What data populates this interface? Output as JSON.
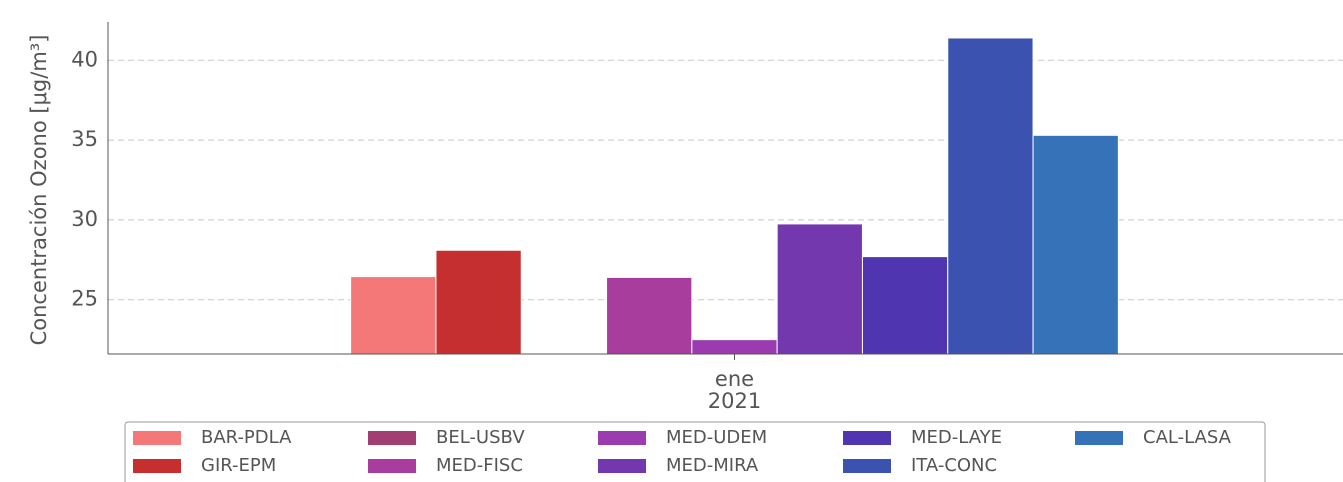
{
  "chart_data": {
    "type": "bar",
    "ylabel": "Concentración Ozono [μg/m³]",
    "categories": [
      "ene\n2021"
    ],
    "series": [
      {
        "name": "BAR-PDLA",
        "color": "#f47878",
        "values": [
          26.45
        ]
      },
      {
        "name": "GIR-EPM",
        "color": "#c62f30",
        "values": [
          28.1
        ]
      },
      {
        "name": "BEL-USBV",
        "color": "#a33e72",
        "values": [
          null
        ]
      },
      {
        "name": "MED-FISC",
        "color": "#a83d9e",
        "values": [
          26.4
        ]
      },
      {
        "name": "MED-UDEM",
        "color": "#9a3cb0",
        "values": [
          22.5
        ]
      },
      {
        "name": "MED-MIRA",
        "color": "#7438ae",
        "values": [
          29.75
        ]
      },
      {
        "name": "MED-LAYE",
        "color": "#5035b0",
        "values": [
          27.7
        ]
      },
      {
        "name": "ITA-CONC",
        "color": "#3b52b0",
        "values": [
          41.4
        ]
      },
      {
        "name": "CAL-LASA",
        "color": "#3572b8",
        "values": [
          35.3
        ]
      }
    ],
    "ylim": [
      21.6,
      42.4
    ],
    "yticks": [
      25,
      30,
      35,
      40
    ],
    "grid": true,
    "legend": "lower center"
  }
}
